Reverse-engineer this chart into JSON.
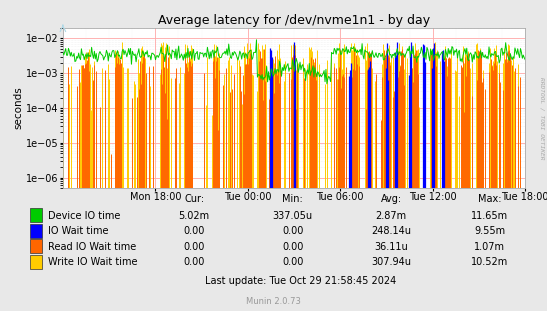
{
  "title": "Average latency for /dev/nvme1n1 - by day",
  "ylabel": "seconds",
  "right_label": "RRDTOOL / TOBI OETIKER",
  "footer": "Munin 2.0.73",
  "last_update": "Last update: Tue Oct 29 21:58:45 2024",
  "x_ticks": [
    "Mon 18:00",
    "Tue 00:00",
    "Tue 06:00",
    "Tue 12:00",
    "Tue 18:00"
  ],
  "background_color": "#e8e8e8",
  "plot_bg_color": "#ffffff",
  "grid_major_color": "#ffaaaa",
  "grid_minor_color": "#dddddd",
  "legend": [
    {
      "label": "Device IO time",
      "color": "#00cc00"
    },
    {
      "label": "IO Wait time",
      "color": "#0000ff"
    },
    {
      "label": "Read IO Wait time",
      "color": "#ff6600"
    },
    {
      "label": "Write IO Wait time",
      "color": "#ffcc00"
    }
  ],
  "stats_headers": [
    "Cur:",
    "Min:",
    "Avg:",
    "Max:"
  ],
  "stats_rows": [
    [
      "5.02m",
      "337.05u",
      "2.87m",
      "11.65m"
    ],
    [
      "0.00",
      "0.00",
      "248.14u",
      "9.55m"
    ],
    [
      "0.00",
      "0.00",
      "36.11u",
      "1.07m"
    ],
    [
      "0.00",
      "0.00",
      "307.94u",
      "10.52m"
    ]
  ]
}
